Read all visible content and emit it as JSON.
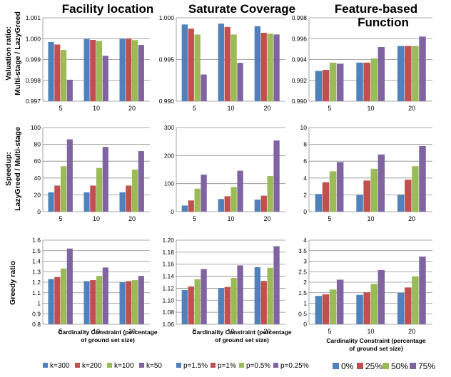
{
  "column_titles": [
    "Facility location",
    "Saturate Coverage",
    "Feature-based",
    "Function"
  ],
  "row_labels": [
    [
      "Valuation ratio:",
      "Multi-stage / LazyGreed"
    ],
    [
      "Speedup:",
      "LazyGreed / Multi-stage"
    ],
    [
      "Greedy ratio"
    ]
  ],
  "x_axis_label": [
    "Cardinality Constraint (percentage",
    "of ground set size)"
  ],
  "legends": [
    {
      "items": [
        "k=300",
        "k=200",
        "k=100",
        "k=50"
      ]
    },
    {
      "items": [
        "p=1.5%",
        "p=1%",
        "p=0.5%",
        "p=0.25%"
      ]
    },
    {
      "items": [
        "0%",
        "25%",
        "50%",
        "75%"
      ]
    }
  ],
  "series_colors": [
    "#4f81bd",
    "#c0504d",
    "#9bbb59",
    "#8064a2"
  ],
  "chart_data": [
    {
      "type": "bar",
      "panel": "row1-col1",
      "categories": [
        "5",
        "10",
        "20"
      ],
      "series": [
        {
          "values": [
            0.99984,
            0.99999,
            0.99999
          ]
        },
        {
          "values": [
            0.99972,
            0.99994,
            1.0
          ]
        },
        {
          "values": [
            0.99946,
            0.99989,
            0.99993
          ]
        },
        {
          "values": [
            0.99803,
            0.99918,
            0.9997
          ]
        }
      ],
      "ylim": [
        0.997,
        1.001
      ],
      "yticks": [
        "0.997",
        "0.998",
        "0.999",
        "1.000",
        "1.001"
      ]
    },
    {
      "type": "bar",
      "panel": "row1-col2",
      "categories": [
        "5",
        "10",
        "20"
      ],
      "series": [
        {
          "values": [
            0.9992,
            0.9993,
            0.999
          ]
        },
        {
          "values": [
            0.9987,
            0.9989,
            0.9982
          ]
        },
        {
          "values": [
            0.998,
            0.998,
            0.9981
          ]
        },
        {
          "values": [
            0.9932,
            0.9946,
            0.998
          ]
        }
      ],
      "ylim": [
        0.99,
        1.0
      ],
      "yticks": [
        "0.990",
        "0.995",
        "1.000"
      ]
    },
    {
      "type": "bar",
      "panel": "row1-col3",
      "categories": [
        "5",
        "10",
        "20"
      ],
      "series": [
        {
          "values": [
            0.9929,
            0.9937,
            0.9953
          ]
        },
        {
          "values": [
            0.993,
            0.9937,
            0.9953
          ]
        },
        {
          "values": [
            0.9937,
            0.9941,
            0.9953
          ]
        },
        {
          "values": [
            0.9936,
            0.9952,
            0.9962
          ]
        }
      ],
      "ylim": [
        0.99,
        0.998
      ],
      "yticks": [
        "0.990",
        "0.992",
        "0.994",
        "0.996",
        "0.998"
      ]
    },
    {
      "type": "bar",
      "panel": "row2-col1",
      "categories": [
        "5",
        "10",
        "20"
      ],
      "series": [
        {
          "values": [
            23,
            23,
            23
          ]
        },
        {
          "values": [
            31,
            31,
            31
          ]
        },
        {
          "values": [
            54,
            52,
            50
          ]
        },
        {
          "values": [
            86,
            77,
            72
          ]
        }
      ],
      "ylim": [
        0,
        100
      ],
      "yticks": [
        "0",
        "20",
        "40",
        "60",
        "80",
        "100"
      ]
    },
    {
      "type": "bar",
      "panel": "row2-col2",
      "categories": [
        "5",
        "10",
        "20"
      ],
      "series": [
        {
          "values": [
            22,
            45,
            43
          ]
        },
        {
          "values": [
            40,
            55,
            57
          ]
        },
        {
          "values": [
            82,
            88,
            127
          ]
        },
        {
          "values": [
            132,
            146,
            254
          ]
        }
      ],
      "ylim": [
        0,
        300
      ],
      "yticks": [
        "0",
        "100",
        "200",
        "300"
      ]
    },
    {
      "type": "bar",
      "panel": "row2-col3",
      "categories": [
        "5",
        "10",
        "20"
      ],
      "series": [
        {
          "values": [
            2.1,
            2.0,
            2.0
          ]
        },
        {
          "values": [
            3.5,
            3.7,
            3.8
          ]
        },
        {
          "values": [
            4.8,
            5.1,
            5.4
          ]
        },
        {
          "values": [
            5.9,
            6.8,
            7.8
          ]
        }
      ],
      "ylim": [
        0,
        10
      ],
      "yticks": [
        "0",
        "2",
        "4",
        "6",
        "8",
        "10"
      ]
    },
    {
      "type": "bar",
      "panel": "row3-col1",
      "categories": [
        "5",
        "10",
        "20"
      ],
      "series": [
        {
          "values": [
            1.23,
            1.21,
            1.2
          ]
        },
        {
          "values": [
            1.25,
            1.22,
            1.21
          ]
        },
        {
          "values": [
            1.33,
            1.26,
            1.22
          ]
        },
        {
          "values": [
            1.52,
            1.34,
            1.26
          ]
        }
      ],
      "ylim": [
        0.8,
        1.6
      ],
      "yticks": [
        "0.8",
        "0.9",
        "1",
        "1.1",
        "1.2",
        "1.3",
        "1.4",
        "1.5",
        "1.6"
      ]
    },
    {
      "type": "bar",
      "panel": "row3-col2",
      "categories": [
        "5",
        "10",
        "20"
      ],
      "series": [
        {
          "values": [
            1.117,
            1.12,
            1.155
          ]
        },
        {
          "values": [
            1.123,
            1.122,
            1.132
          ]
        },
        {
          "values": [
            1.135,
            1.137,
            1.154
          ]
        },
        {
          "values": [
            1.152,
            1.158,
            1.19
          ]
        }
      ],
      "ylim": [
        1.06,
        1.2
      ],
      "yticks": [
        "1.06",
        "1.08",
        "1.10",
        "1.12",
        "1.14",
        "1.16",
        "1.18",
        "1.20"
      ]
    },
    {
      "type": "bar",
      "panel": "row3-col3",
      "categories": [
        "5",
        "10",
        "20"
      ],
      "series": [
        {
          "values": [
            1.35,
            1.4,
            1.5
          ]
        },
        {
          "values": [
            1.42,
            1.52,
            1.75
          ]
        },
        {
          "values": [
            1.65,
            1.92,
            2.28
          ]
        },
        {
          "values": [
            2.12,
            2.58,
            3.22
          ]
        }
      ],
      "ylim": [
        0,
        4
      ],
      "yticks": [
        "0",
        "0.5",
        "1",
        "1.5",
        "2",
        "2.5",
        "3",
        "3.5",
        "4"
      ]
    }
  ]
}
